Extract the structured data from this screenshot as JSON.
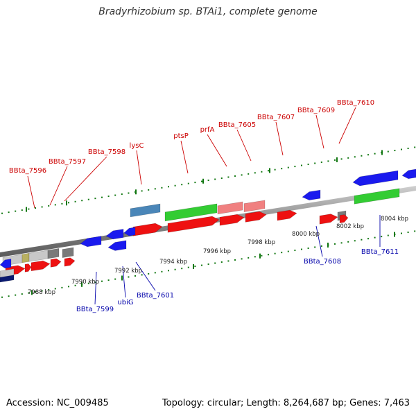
{
  "title": "Bradyrhizobium sp. BTAi1, complete genome",
  "footer": {
    "accession": "Accession: NC_009485",
    "summary": "Topology: circular; Length: 8,264,687 bp; Genes: 7,463"
  },
  "colors": {
    "forward_label": "#cc0000",
    "reverse_label": "#0000aa",
    "tick_forward": "#117711",
    "tick_reverse": "#117711",
    "backbone": "#8c8c8c",
    "red_gene": "#ee1111",
    "blue_gene": "#1a1aee",
    "green_gene": "#33cc33",
    "pink_gene": "#f08080",
    "steel_gene": "#4a86b8",
    "gray_gene": "#7a7a7a",
    "lightgray_gene": "#c8c8c8",
    "olive_gene": "#b8b060",
    "navy_gene": "#0a1a70"
  },
  "forward_labels": [
    {
      "text": "BBta_7596"
    },
    {
      "text": "BBta_7597"
    },
    {
      "text": "BBta_7598"
    },
    {
      "text": "lysC"
    },
    {
      "text": "ptsP"
    },
    {
      "text": "prfA"
    },
    {
      "text": "BBta_7605"
    },
    {
      "text": "BBta_7607"
    },
    {
      "text": "BBta_7609"
    },
    {
      "text": "BBta_7610"
    }
  ],
  "reverse_labels": [
    {
      "text": "BBta_7599"
    },
    {
      "text": "ubiG"
    },
    {
      "text": "BBta_7601"
    },
    {
      "text": "BBta_7608"
    },
    {
      "text": "BBta_7611"
    }
  ],
  "kbp_labels": [
    {
      "text": "7988 kbp"
    },
    {
      "text": "7990 kbp"
    },
    {
      "text": "7992 kbp"
    },
    {
      "text": "7994 kbp"
    },
    {
      "text": "7996 kbp"
    },
    {
      "text": "7998 kbp"
    },
    {
      "text": "8000 kbp"
    },
    {
      "text": "8002 kbp"
    },
    {
      "text": "8004 kbp"
    }
  ]
}
